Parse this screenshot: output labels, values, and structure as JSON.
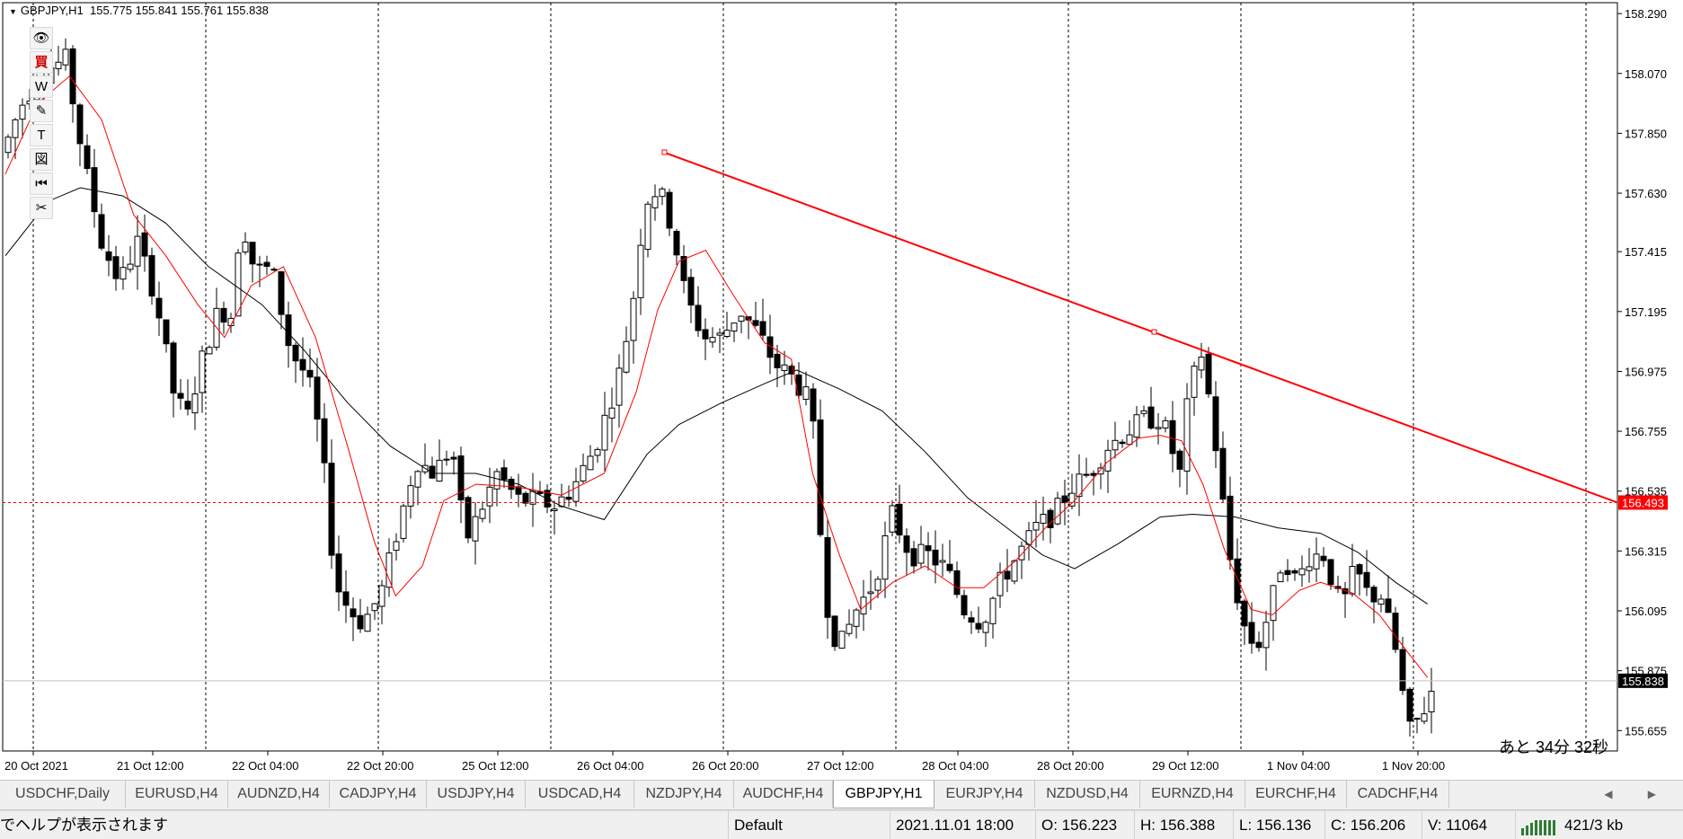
{
  "chart": {
    "symbol_line": "GBPJPY,H1  155.775 155.841 155.761 155.838",
    "countdown": "あと 34分 32秒",
    "y_ticks": [
      "158.290",
      "158.070",
      "157.850",
      "157.630",
      "157.415",
      "157.195",
      "156.975",
      "156.755",
      "156.535",
      "156.315",
      "156.095",
      "155.875",
      "155.655"
    ],
    "x_ticks": [
      "20 Oct 2021",
      "21 Oct 12:00",
      "22 Oct 04:00",
      "22 Oct 20:00",
      "25 Oct 12:00",
      "26 Oct 04:00",
      "26 Oct 20:00",
      "27 Oct 12:00",
      "28 Oct 04:00",
      "28 Oct 20:00",
      "29 Oct 12:00",
      "1 Nov 04:00",
      "1 Nov 20:00"
    ],
    "horizontal_line_label": "156.493",
    "current_price_label": "155.838",
    "horizontal_line_color": "#ff0000",
    "trendline_color": "#ff0000",
    "ma_fast_color": "#ff0000",
    "ma_slow_color": "#000000"
  },
  "toolbar": {
    "items": [
      {
        "icon": "eye-icon",
        "glyph": "👁"
      },
      {
        "icon": "buy-icon",
        "glyph": "買"
      },
      {
        "icon": "w-icon",
        "glyph": "W"
      },
      {
        "icon": "pencil-icon",
        "glyph": "✎"
      },
      {
        "icon": "text-icon",
        "glyph": "T"
      },
      {
        "icon": "figure-icon",
        "glyph": "図"
      },
      {
        "icon": "rewind-icon",
        "glyph": "⏮"
      },
      {
        "icon": "scissors-icon",
        "glyph": "✂"
      }
    ]
  },
  "tabs": [
    {
      "label": "USDCHF,Daily",
      "active": false
    },
    {
      "label": "EURUSD,H4",
      "active": false
    },
    {
      "label": "AUDNZD,H4",
      "active": false
    },
    {
      "label": "CADJPY,H4",
      "active": false
    },
    {
      "label": "USDJPY,H4",
      "active": false
    },
    {
      "label": "USDCAD,H4",
      "active": false
    },
    {
      "label": "NZDJPY,H4",
      "active": false
    },
    {
      "label": "AUDCHF,H4",
      "active": false
    },
    {
      "label": "GBPJPY,H1",
      "active": true
    },
    {
      "label": "EURJPY,H4",
      "active": false
    },
    {
      "label": "NZDUSD,H4",
      "active": false
    },
    {
      "label": "EURNZD,H4",
      "active": false
    },
    {
      "label": "EURCHF,H4",
      "active": false
    },
    {
      "label": "CADCHF,H4",
      "active": false
    }
  ],
  "tab_arrows": "◀ ▶",
  "status": {
    "help": "でヘルプが表示されます",
    "profile": "Default",
    "datetime": "2021.11.01 18:00",
    "open": "O: 156.223",
    "high": "H: 156.388",
    "low": "L: 156.136",
    "close": "C: 156.206",
    "volume": "V: 11064",
    "traffic": "421/3 kb"
  },
  "chart_data": {
    "type": "candlestick",
    "price_range": [
      155.58,
      158.33
    ],
    "ma_fast_series": [
      [
        0,
        157.7
      ],
      [
        30,
        157.96
      ],
      [
        60,
        158.06
      ],
      [
        90,
        157.9
      ],
      [
        120,
        157.55
      ],
      [
        150,
        157.4
      ],
      [
        180,
        157.22
      ],
      [
        205,
        157.1
      ],
      [
        230,
        157.29
      ],
      [
        260,
        157.36
      ],
      [
        290,
        157.1
      ],
      [
        320,
        156.7
      ],
      [
        345,
        156.35
      ],
      [
        365,
        156.15
      ],
      [
        390,
        156.26
      ],
      [
        410,
        156.5
      ],
      [
        440,
        156.56
      ],
      [
        480,
        156.55
      ],
      [
        520,
        156.52
      ],
      [
        560,
        156.6
      ],
      [
        590,
        156.9
      ],
      [
        610,
        157.2
      ],
      [
        630,
        157.38
      ],
      [
        655,
        157.42
      ],
      [
        680,
        157.26
      ],
      [
        710,
        157.08
      ],
      [
        735,
        157.02
      ],
      [
        755,
        156.6
      ],
      [
        780,
        156.3
      ],
      [
        800,
        156.1
      ],
      [
        830,
        156.2
      ],
      [
        860,
        156.26
      ],
      [
        890,
        156.18
      ],
      [
        915,
        156.18
      ],
      [
        945,
        156.28
      ],
      [
        975,
        156.41
      ],
      [
        1000,
        156.5
      ],
      [
        1030,
        156.64
      ],
      [
        1060,
        156.73
      ],
      [
        1080,
        156.74
      ],
      [
        1100,
        156.72
      ],
      [
        1120,
        156.56
      ],
      [
        1140,
        156.32
      ],
      [
        1165,
        156.1
      ],
      [
        1185,
        156.08
      ],
      [
        1210,
        156.17
      ],
      [
        1230,
        156.2
      ],
      [
        1260,
        156.16
      ],
      [
        1285,
        156.08
      ],
      [
        1310,
        155.95
      ],
      [
        1330,
        155.85
      ]
    ],
    "ma_slow_series": [
      [
        0,
        157.4
      ],
      [
        40,
        157.6
      ],
      [
        70,
        157.65
      ],
      [
        110,
        157.62
      ],
      [
        150,
        157.52
      ],
      [
        190,
        157.36
      ],
      [
        240,
        157.22
      ],
      [
        280,
        157.05
      ],
      [
        320,
        156.86
      ],
      [
        360,
        156.7
      ],
      [
        400,
        156.6
      ],
      [
        440,
        156.6
      ],
      [
        480,
        156.56
      ],
      [
        520,
        156.48
      ],
      [
        560,
        156.43
      ],
      [
        600,
        156.67
      ],
      [
        630,
        156.78
      ],
      [
        670,
        156.86
      ],
      [
        710,
        156.93
      ],
      [
        740,
        156.98
      ],
      [
        780,
        156.91
      ],
      [
        820,
        156.83
      ],
      [
        860,
        156.68
      ],
      [
        900,
        156.51
      ],
      [
        940,
        156.39
      ],
      [
        970,
        156.3
      ],
      [
        1000,
        156.25
      ],
      [
        1040,
        156.34
      ],
      [
        1080,
        156.44
      ],
      [
        1110,
        156.45
      ],
      [
        1150,
        156.44
      ],
      [
        1190,
        156.4
      ],
      [
        1230,
        156.38
      ],
      [
        1265,
        156.31
      ],
      [
        1300,
        156.2
      ],
      [
        1330,
        156.12
      ]
    ],
    "trendline": {
      "start": [
        "26 Oct 12:00",
        157.806
      ],
      "end": [
        "1 Nov 20:00+",
        156.493
      ]
    },
    "horizontal_line": 156.493,
    "current_price": 155.838
  }
}
